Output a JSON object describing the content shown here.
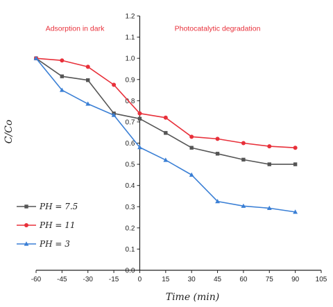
{
  "chart_data": {
    "type": "line",
    "title": "",
    "xlabel": "Time (min)",
    "ylabel": "C/Co",
    "xlim": [
      -60,
      105
    ],
    "ylim": [
      0.0,
      1.2
    ],
    "x_ticks": [
      -60,
      -45,
      -30,
      -15,
      0,
      15,
      30,
      45,
      60,
      75,
      90,
      105
    ],
    "y_ticks": [
      0.0,
      0.1,
      0.2,
      0.3,
      0.4,
      0.5,
      0.6,
      0.7,
      0.8,
      0.9,
      1.0,
      1.1,
      1.2
    ],
    "x_tick_labels": [
      "-60",
      "-45",
      "-30",
      "-15",
      "0",
      "15",
      "30",
      "45",
      "60",
      "75",
      "90",
      "105"
    ],
    "y_tick_labels": [
      "0.0",
      "0.1",
      "0.2",
      "0.3",
      "0.4",
      "0.5",
      "0.6",
      "0.7",
      "0.8",
      "0.9",
      "1.0",
      "1.1",
      "1.2"
    ],
    "grid": false,
    "legend_position": "bottom-left",
    "annotations": [
      {
        "text": "Adsorption in dark",
        "x": -37.5,
        "y": 1.13
      },
      {
        "text": "Photocatalytic degradation",
        "x": 45,
        "y": 1.13
      }
    ],
    "series": [
      {
        "name": "PH = 7.5",
        "color": "#555555",
        "marker": "square",
        "x": [
          -60,
          -45,
          -30,
          -15,
          0,
          15,
          30,
          45,
          60,
          75,
          90
        ],
        "y": [
          1.0,
          0.915,
          0.897,
          0.74,
          0.715,
          0.648,
          0.578,
          0.55,
          0.522,
          0.5,
          0.5
        ]
      },
      {
        "name": "PH = 11",
        "color": "#e8303a",
        "marker": "circle",
        "x": [
          -60,
          -45,
          -30,
          -15,
          0,
          15,
          30,
          45,
          60,
          75,
          90
        ],
        "y": [
          1.0,
          0.99,
          0.96,
          0.875,
          0.74,
          0.72,
          0.63,
          0.62,
          0.6,
          0.585,
          0.578
        ]
      },
      {
        "name": "PH = 3",
        "color": "#3a7fd5",
        "marker": "triangle",
        "x": [
          -60,
          -45,
          -30,
          -15,
          0,
          15,
          30,
          45,
          60,
          75,
          90
        ],
        "y": [
          1.0,
          0.85,
          0.785,
          0.732,
          0.58,
          0.52,
          0.45,
          0.325,
          0.303,
          0.293,
          0.275
        ]
      }
    ]
  }
}
